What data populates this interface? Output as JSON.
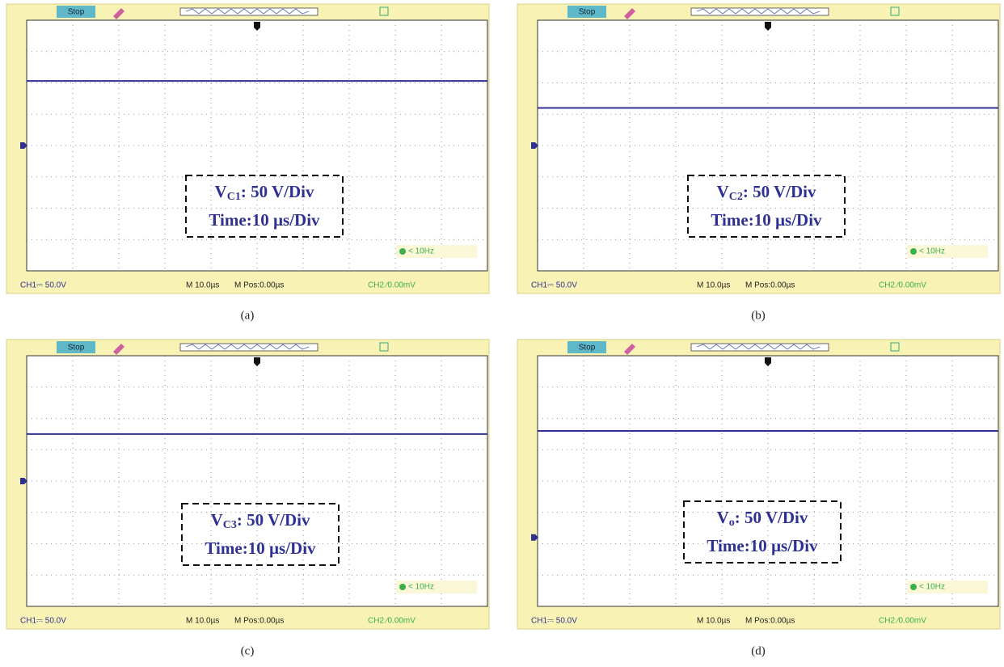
{
  "panels": [
    {
      "status": "Stop",
      "ch1": "CH1⎓ 50.0V",
      "timebase": "M 10.0µs",
      "mpos": "M Pos:0.00µs",
      "ch2": "CH2 ∕0.00mV",
      "trigger": "< 10Hz",
      "label_main": "V",
      "label_sub": "C1",
      "label_rest": ": 50 V/Div",
      "label_time": "Time:10 µs/Div",
      "caption": "(a)",
      "trace_level": 2.06,
      "ground_level": 0
    },
    {
      "status": "Stop",
      "ch1": "CH1⎓ 50.0V",
      "timebase": "M 10.0µs",
      "mpos": "M Pos:0.00µs",
      "ch2": "CH2 ∕0.00mV",
      "trigger": "< 10Hz",
      "label_main": "V",
      "label_sub": "C2",
      "label_rest": ": 50 V/Div",
      "label_time": "Time:10 µs/Div",
      "caption": "(b)",
      "trace_level": 1.2,
      "ground_level": 0
    },
    {
      "status": "Stop",
      "ch1": "CH1⎓ 50.0V",
      "timebase": "M 10.0µs",
      "mpos": "M Pos:0.00µs",
      "ch2": "CH2 ∕0.00mV",
      "trigger": "< 10Hz",
      "label_main": "V",
      "label_sub": "C3",
      "label_rest": ": 50 V/Div",
      "label_time": "Time:10 µs/Div",
      "caption": "(c)",
      "trace_level": 1.5,
      "ground_level": 0
    },
    {
      "status": "Stop",
      "ch1": "CH1⎓ 50.0V",
      "timebase": "M 10.0µs",
      "mpos": "M Pos:0.00µs",
      "ch2": "CH2 ∕0.00mV",
      "trigger": "< 10Hz",
      "label_main": "V",
      "label_sub": "o",
      "label_rest": ": 50 V/Div",
      "label_time": "Time:10 µs/Div",
      "caption": "(d)",
      "trace_level": 1.6,
      "ground_level": -1.8
    }
  ]
}
